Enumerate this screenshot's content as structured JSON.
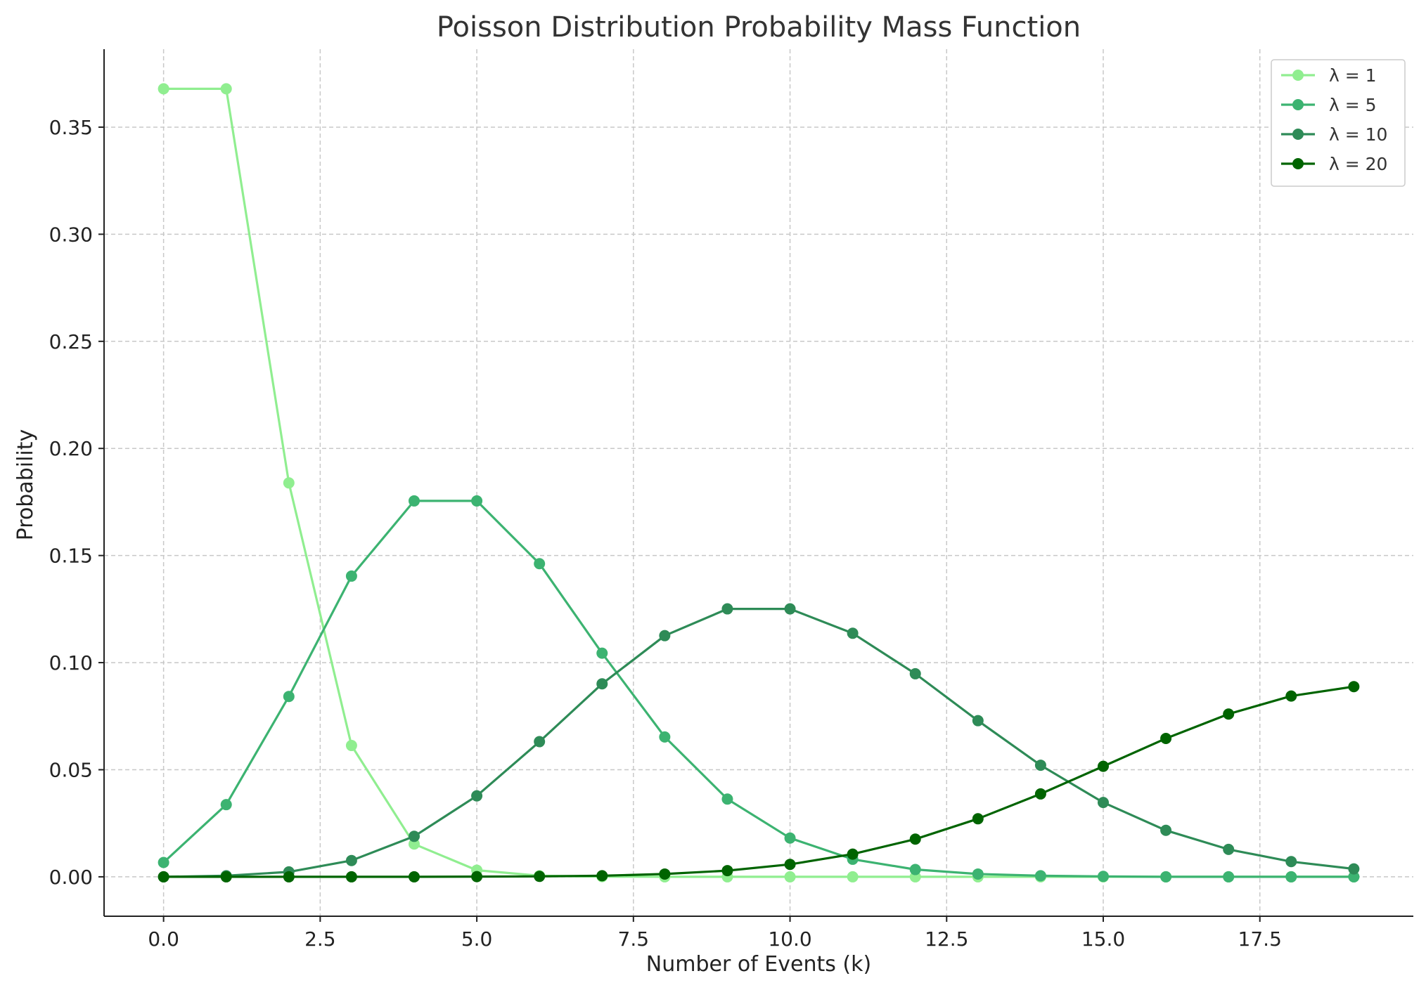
{
  "chart_data": {
    "type": "line",
    "title": "Poisson Distribution Probability Mass Function",
    "xlabel": "Number of Events (k)",
    "ylabel": "Probability",
    "xlim": [
      -0.95,
      19.95
    ],
    "ylim": [
      -0.0184,
      0.3864
    ],
    "x_ticks": [
      "0.0",
      "2.5",
      "5.0",
      "7.5",
      "10.0",
      "12.5",
      "15.0",
      "17.5"
    ],
    "x_tick_values": [
      0,
      2.5,
      5,
      7.5,
      10,
      12.5,
      15,
      17.5
    ],
    "y_ticks": [
      "0.00",
      "0.05",
      "0.10",
      "0.15",
      "0.20",
      "0.25",
      "0.30",
      "0.35"
    ],
    "y_tick_values": [
      0,
      0.05,
      0.1,
      0.15,
      0.2,
      0.25,
      0.3,
      0.35
    ],
    "grid": true,
    "legend_position": "top-right",
    "x": [
      0,
      1,
      2,
      3,
      4,
      5,
      6,
      7,
      8,
      9,
      10,
      11,
      12,
      13,
      14,
      15,
      16,
      17,
      18,
      19
    ],
    "series": [
      {
        "name": "λ = 1",
        "color": "#90ee90",
        "values": [
          0.3679,
          0.3679,
          0.1839,
          0.0613,
          0.0153,
          0.0031,
          0.0005,
          0.0001,
          0.0,
          0.0,
          0.0,
          0.0,
          0.0,
          0.0,
          0.0,
          0.0,
          0.0,
          0.0,
          0.0,
          0.0
        ]
      },
      {
        "name": "λ = 5",
        "color": "#3cb371",
        "values": [
          0.0067,
          0.0337,
          0.0842,
          0.1404,
          0.1755,
          0.1755,
          0.1462,
          0.1044,
          0.0653,
          0.0363,
          0.0181,
          0.0082,
          0.0034,
          0.0013,
          0.0005,
          0.0002,
          0.0,
          0.0,
          0.0,
          0.0
        ]
      },
      {
        "name": "λ = 10",
        "color": "#2e8b57",
        "values": [
          0.0,
          0.0005,
          0.0023,
          0.0076,
          0.0189,
          0.0378,
          0.0631,
          0.0901,
          0.1126,
          0.1251,
          0.1251,
          0.1137,
          0.0948,
          0.0729,
          0.0521,
          0.0347,
          0.0217,
          0.0128,
          0.0071,
          0.0037
        ]
      },
      {
        "name": "λ = 20",
        "color": "#006400",
        "values": [
          0.0,
          0.0,
          0.0,
          0.0,
          0.0,
          0.0001,
          0.0002,
          0.0005,
          0.0013,
          0.0029,
          0.0058,
          0.0106,
          0.0176,
          0.0271,
          0.0387,
          0.0516,
          0.0646,
          0.076,
          0.0844,
          0.0888
        ]
      }
    ]
  }
}
